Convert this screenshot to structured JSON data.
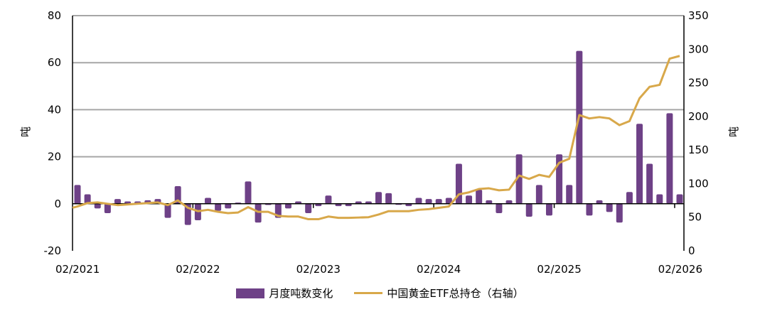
{
  "chart_data": {
    "type": "bar+line",
    "xlabel": "",
    "x_tick_labels": [
      "02/2021",
      "02/2022",
      "02/2023",
      "02/2024",
      "02/2025",
      "02/2026"
    ],
    "months_start": "02/2021",
    "months_end": "02/2026",
    "left_axis": {
      "label": "吨",
      "ylim": [
        -20,
        80
      ],
      "ticks": [
        -20,
        0,
        20,
        40,
        60,
        80
      ]
    },
    "right_axis": {
      "label": "吨",
      "ylim": [
        0,
        350
      ],
      "ticks": [
        0,
        50,
        100,
        150,
        200,
        250,
        300,
        350
      ]
    },
    "grid": true,
    "legend_position": "bottom",
    "series": [
      {
        "name": "月度吨数变化",
        "type": "bar",
        "axis": "left",
        "color": "#6e4187",
        "values": [
          8,
          4,
          -2,
          -4,
          2,
          1,
          1,
          1.5,
          2,
          -6,
          7.5,
          -9,
          -7,
          2.5,
          -3,
          -2,
          0.5,
          9.5,
          -8,
          -0.5,
          -6,
          -2,
          1,
          -4,
          -1,
          3.5,
          -1,
          -1,
          1,
          1,
          5,
          4.5,
          0,
          -1,
          2.5,
          2,
          2,
          2.5,
          17,
          3.5,
          6,
          1.5,
          -4,
          1.5,
          21,
          -5.5,
          8,
          -5,
          21,
          8,
          65,
          -5,
          1.5,
          -3.5,
          -8,
          5,
          34,
          17,
          4,
          38.5,
          4
        ]
      },
      {
        "name": "中国黄金ETF总持仓（右轴）",
        "type": "line",
        "axis": "right",
        "color": "#d8a84a",
        "values": [
          66,
          71,
          72,
          70,
          68,
          69,
          70,
          71,
          72,
          68,
          75,
          64,
          59,
          61,
          58,
          56,
          57,
          65,
          58,
          58,
          52,
          51,
          51,
          47,
          47,
          51,
          49,
          49,
          49.5,
          50,
          54,
          59,
          59,
          59,
          61,
          62,
          64,
          66,
          84,
          87,
          92,
          93,
          90,
          91,
          112,
          107,
          113,
          110,
          131,
          137,
          202,
          197,
          199,
          197,
          187,
          193,
          227,
          244,
          247,
          286,
          290
        ]
      }
    ]
  }
}
